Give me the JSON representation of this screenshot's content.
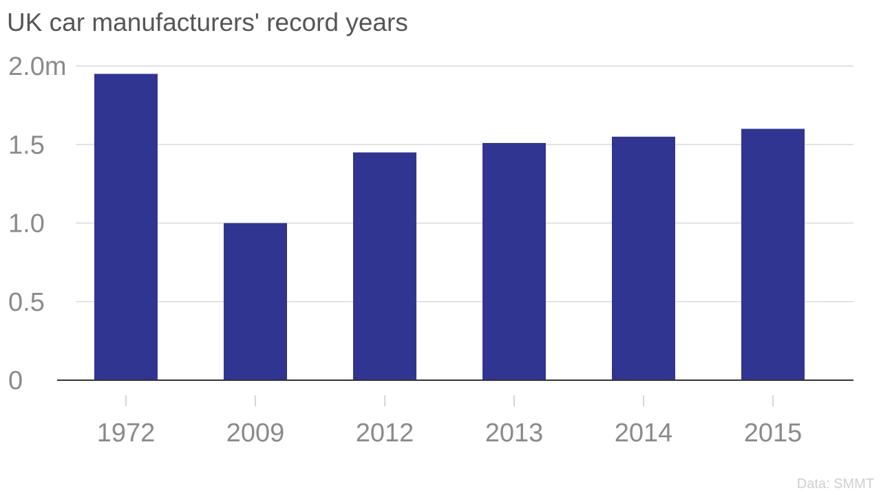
{
  "title": "UK car manufacturers' record years",
  "source": "Data: SMMT",
  "chart_data": {
    "type": "bar",
    "title": "UK car manufacturers' record years",
    "xlabel": "",
    "ylabel": "",
    "categories": [
      "1972",
      "2009",
      "2012",
      "2013",
      "2014",
      "2015"
    ],
    "values": [
      1.95,
      1.0,
      1.45,
      1.51,
      1.55,
      1.6
    ],
    "unit": "m",
    "ylim": [
      0,
      2.0
    ],
    "yticks": [
      {
        "value": 0,
        "label": "0"
      },
      {
        "value": 0.5,
        "label": "0.5"
      },
      {
        "value": 1.0,
        "label": "1.0"
      },
      {
        "value": 1.5,
        "label": "1.5"
      },
      {
        "value": 2.0,
        "label": "2.0m"
      }
    ],
    "grid": true,
    "legend": "none",
    "bar_color": "#303592",
    "grid_color": "#d9d9d9",
    "axis_color": "#333333"
  }
}
